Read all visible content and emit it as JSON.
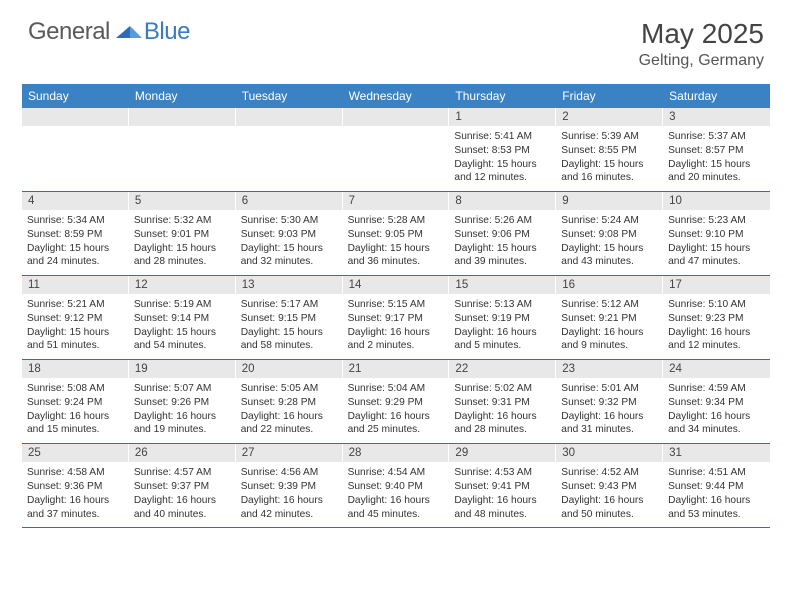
{
  "logo": {
    "general": "General",
    "blue": "Blue"
  },
  "title": "May 2025",
  "location": "Gelting, Germany",
  "colors": {
    "header_bg": "#3b82c4",
    "header_text": "#ffffff",
    "daynum_bg": "#e8e8e8",
    "rule": "#3b6ea0",
    "logo_gray": "#5a5a5a",
    "logo_blue": "#3b7bbf"
  },
  "dow": [
    "Sunday",
    "Monday",
    "Tuesday",
    "Wednesday",
    "Thursday",
    "Friday",
    "Saturday"
  ],
  "weeks": [
    [
      {
        "n": "",
        "blank": true
      },
      {
        "n": "",
        "blank": true
      },
      {
        "n": "",
        "blank": true
      },
      {
        "n": "",
        "blank": true
      },
      {
        "n": "1",
        "sunrise": "5:41 AM",
        "sunset": "8:53 PM",
        "dl1": "Daylight: 15 hours",
        "dl2": "and 12 minutes."
      },
      {
        "n": "2",
        "sunrise": "5:39 AM",
        "sunset": "8:55 PM",
        "dl1": "Daylight: 15 hours",
        "dl2": "and 16 minutes."
      },
      {
        "n": "3",
        "sunrise": "5:37 AM",
        "sunset": "8:57 PM",
        "dl1": "Daylight: 15 hours",
        "dl2": "and 20 minutes."
      }
    ],
    [
      {
        "n": "4",
        "sunrise": "5:34 AM",
        "sunset": "8:59 PM",
        "dl1": "Daylight: 15 hours",
        "dl2": "and 24 minutes."
      },
      {
        "n": "5",
        "sunrise": "5:32 AM",
        "sunset": "9:01 PM",
        "dl1": "Daylight: 15 hours",
        "dl2": "and 28 minutes."
      },
      {
        "n": "6",
        "sunrise": "5:30 AM",
        "sunset": "9:03 PM",
        "dl1": "Daylight: 15 hours",
        "dl2": "and 32 minutes."
      },
      {
        "n": "7",
        "sunrise": "5:28 AM",
        "sunset": "9:05 PM",
        "dl1": "Daylight: 15 hours",
        "dl2": "and 36 minutes."
      },
      {
        "n": "8",
        "sunrise": "5:26 AM",
        "sunset": "9:06 PM",
        "dl1": "Daylight: 15 hours",
        "dl2": "and 39 minutes."
      },
      {
        "n": "9",
        "sunrise": "5:24 AM",
        "sunset": "9:08 PM",
        "dl1": "Daylight: 15 hours",
        "dl2": "and 43 minutes."
      },
      {
        "n": "10",
        "sunrise": "5:23 AM",
        "sunset": "9:10 PM",
        "dl1": "Daylight: 15 hours",
        "dl2": "and 47 minutes."
      }
    ],
    [
      {
        "n": "11",
        "sunrise": "5:21 AM",
        "sunset": "9:12 PM",
        "dl1": "Daylight: 15 hours",
        "dl2": "and 51 minutes."
      },
      {
        "n": "12",
        "sunrise": "5:19 AM",
        "sunset": "9:14 PM",
        "dl1": "Daylight: 15 hours",
        "dl2": "and 54 minutes."
      },
      {
        "n": "13",
        "sunrise": "5:17 AM",
        "sunset": "9:15 PM",
        "dl1": "Daylight: 15 hours",
        "dl2": "and 58 minutes."
      },
      {
        "n": "14",
        "sunrise": "5:15 AM",
        "sunset": "9:17 PM",
        "dl1": "Daylight: 16 hours",
        "dl2": "and 2 minutes."
      },
      {
        "n": "15",
        "sunrise": "5:13 AM",
        "sunset": "9:19 PM",
        "dl1": "Daylight: 16 hours",
        "dl2": "and 5 minutes."
      },
      {
        "n": "16",
        "sunrise": "5:12 AM",
        "sunset": "9:21 PM",
        "dl1": "Daylight: 16 hours",
        "dl2": "and 9 minutes."
      },
      {
        "n": "17",
        "sunrise": "5:10 AM",
        "sunset": "9:23 PM",
        "dl1": "Daylight: 16 hours",
        "dl2": "and 12 minutes."
      }
    ],
    [
      {
        "n": "18",
        "sunrise": "5:08 AM",
        "sunset": "9:24 PM",
        "dl1": "Daylight: 16 hours",
        "dl2": "and 15 minutes."
      },
      {
        "n": "19",
        "sunrise": "5:07 AM",
        "sunset": "9:26 PM",
        "dl1": "Daylight: 16 hours",
        "dl2": "and 19 minutes."
      },
      {
        "n": "20",
        "sunrise": "5:05 AM",
        "sunset": "9:28 PM",
        "dl1": "Daylight: 16 hours",
        "dl2": "and 22 minutes."
      },
      {
        "n": "21",
        "sunrise": "5:04 AM",
        "sunset": "9:29 PM",
        "dl1": "Daylight: 16 hours",
        "dl2": "and 25 minutes."
      },
      {
        "n": "22",
        "sunrise": "5:02 AM",
        "sunset": "9:31 PM",
        "dl1": "Daylight: 16 hours",
        "dl2": "and 28 minutes."
      },
      {
        "n": "23",
        "sunrise": "5:01 AM",
        "sunset": "9:32 PM",
        "dl1": "Daylight: 16 hours",
        "dl2": "and 31 minutes."
      },
      {
        "n": "24",
        "sunrise": "4:59 AM",
        "sunset": "9:34 PM",
        "dl1": "Daylight: 16 hours",
        "dl2": "and 34 minutes."
      }
    ],
    [
      {
        "n": "25",
        "sunrise": "4:58 AM",
        "sunset": "9:36 PM",
        "dl1": "Daylight: 16 hours",
        "dl2": "and 37 minutes."
      },
      {
        "n": "26",
        "sunrise": "4:57 AM",
        "sunset": "9:37 PM",
        "dl1": "Daylight: 16 hours",
        "dl2": "and 40 minutes."
      },
      {
        "n": "27",
        "sunrise": "4:56 AM",
        "sunset": "9:39 PM",
        "dl1": "Daylight: 16 hours",
        "dl2": "and 42 minutes."
      },
      {
        "n": "28",
        "sunrise": "4:54 AM",
        "sunset": "9:40 PM",
        "dl1": "Daylight: 16 hours",
        "dl2": "and 45 minutes."
      },
      {
        "n": "29",
        "sunrise": "4:53 AM",
        "sunset": "9:41 PM",
        "dl1": "Daylight: 16 hours",
        "dl2": "and 48 minutes."
      },
      {
        "n": "30",
        "sunrise": "4:52 AM",
        "sunset": "9:43 PM",
        "dl1": "Daylight: 16 hours",
        "dl2": "and 50 minutes."
      },
      {
        "n": "31",
        "sunrise": "4:51 AM",
        "sunset": "9:44 PM",
        "dl1": "Daylight: 16 hours",
        "dl2": "and 53 minutes."
      }
    ]
  ]
}
